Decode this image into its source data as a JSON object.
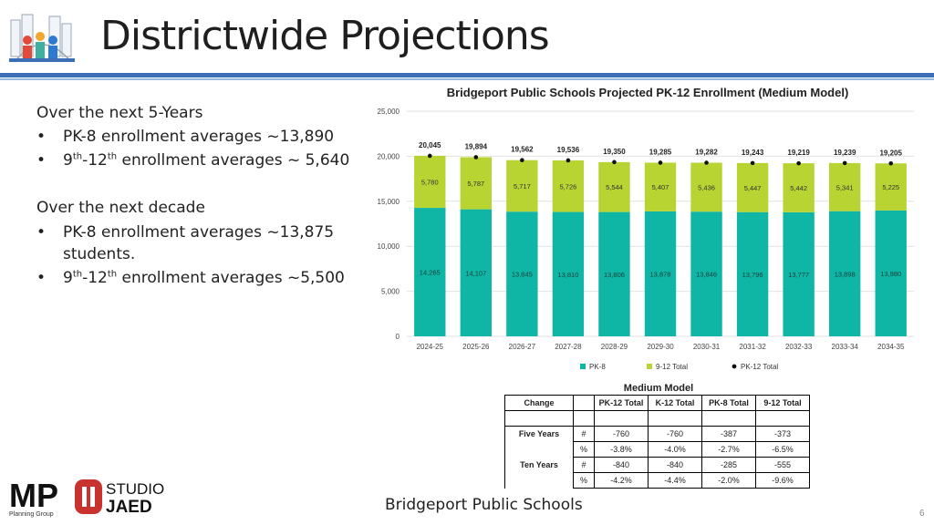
{
  "page": {
    "title": "Districtwide Projections",
    "footer": "Bridgeport Public Schools",
    "page_number": "6",
    "logos": {
      "mp_text": "MP",
      "mp_sub": "Planning Group",
      "studio_text": "STUDIO",
      "jaed_text": "JAED"
    }
  },
  "bullets": {
    "five_year_heading": "Over the next 5-Years",
    "five_year_pk8": "PK-8 enrollment averages ~13,890",
    "five_year_912_pre": "9",
    "five_year_912_sup1": "th",
    "five_year_912_mid": "-12",
    "five_year_912_sup2": "th",
    "five_year_912_post": " enrollment averages ~ 5,640",
    "decade_heading": "Over the next decade",
    "decade_pk8": "PK-8 enrollment averages ~13,875 students.",
    "decade_912_pre": "9",
    "decade_912_sup1": "th",
    "decade_912_mid": "-12",
    "decade_912_sup2": "th",
    "decade_912_post": " enrollment averages ~5,500"
  },
  "chart_data": {
    "type": "bar",
    "stacked": true,
    "title": "Bridgeport Public Schools Projected PK-12 Enrollment (Medium Model)",
    "categories": [
      "2024-25",
      "2025-26",
      "2026-27",
      "2027-28",
      "2028-29",
      "2029-30",
      "2030-31",
      "2031-32",
      "2032-33",
      "2033-34",
      "2034-35"
    ],
    "series": [
      {
        "name": "PK-8",
        "color": "#0fb5a5",
        "values": [
          14265,
          14107,
          13845,
          13810,
          13806,
          13878,
          13846,
          13796,
          13777,
          13898,
          13980
        ]
      },
      {
        "name": "9-12 Total",
        "color": "#b8d433",
        "values": [
          5780,
          5787,
          5717,
          5726,
          5544,
          5407,
          5436,
          5447,
          5442,
          5341,
          5225
        ]
      }
    ],
    "totals": {
      "name": "PK-12 Total",
      "color": "#111111",
      "values": [
        20045,
        19894,
        19562,
        19536,
        19350,
        19285,
        19282,
        19243,
        19219,
        19239,
        19205
      ]
    },
    "value_labels": {
      "pk8": [
        "14,265",
        "14,107",
        "13,845",
        "13,810",
        "13,806",
        "13,878",
        "13,846",
        "13,796",
        "13,777",
        "13,898",
        "13,980"
      ],
      "g912": [
        "5,780",
        "5,787",
        "5,717",
        "5,726",
        "5,544",
        "5,407",
        "5,436",
        "5,447",
        "5,442",
        "5,341",
        "5,225"
      ],
      "total": [
        "20,045",
        "19,894",
        "19,562",
        "19,536",
        "19,350",
        "19,285",
        "19,282",
        "19,243",
        "19,219",
        "19,239",
        "19,205"
      ]
    },
    "yticks": [
      0,
      5000,
      10000,
      15000,
      20000,
      25000
    ],
    "ytick_labels": [
      "0",
      "5,000",
      "10,000",
      "15,000",
      "20,000",
      "25,000"
    ],
    "ylim": [
      0,
      25000
    ],
    "legend_position": "bottom",
    "grid": true
  },
  "medium_model": {
    "title": "Medium Model",
    "headers": [
      "Change",
      "",
      "PK-12 Total",
      "K-12 Total",
      "PK-8 Total",
      "9-12 Total"
    ],
    "rows": [
      {
        "label": "Five Years",
        "unit": "#",
        "values": [
          "-760",
          "-760",
          "-387",
          "-373"
        ]
      },
      {
        "label": "",
        "unit": "%",
        "values": [
          "-3.8%",
          "-4.0%",
          "-2.7%",
          "-6.5%"
        ]
      },
      {
        "label": "Ten Years",
        "unit": "#",
        "values": [
          "-840",
          "-840",
          "-285",
          "-555"
        ]
      },
      {
        "label": "",
        "unit": "%",
        "values": [
          "-4.2%",
          "-4.4%",
          "-2.0%",
          "-9.6%"
        ]
      }
    ]
  }
}
